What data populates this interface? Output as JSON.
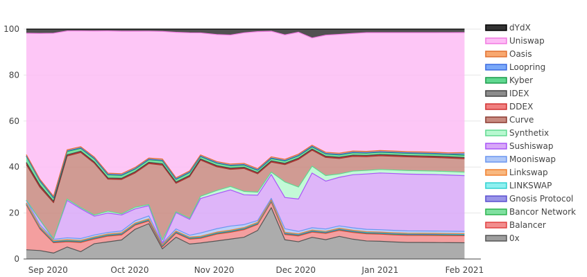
{
  "chart_data": {
    "type": "area",
    "stacked": true,
    "normalized_percent": true,
    "grid": "horizontal",
    "legend_position": "right",
    "ylim": [
      0,
      100
    ],
    "yticks": [
      0,
      20,
      40,
      60,
      80,
      100
    ],
    "xlim": [
      "2020-08-23",
      "2021-02-07"
    ],
    "xticks": [
      {
        "date": "2020-09-01",
        "label": "Sep 2020"
      },
      {
        "date": "2020-10-01",
        "label": "Oct 2020"
      },
      {
        "date": "2020-11-01",
        "label": "Nov 2020"
      },
      {
        "date": "2020-12-01",
        "label": "Dec 2020"
      },
      {
        "date": "2021-01-01",
        "label": "Jan 2021"
      },
      {
        "date": "2021-02-01",
        "label": "Feb 2021"
      }
    ],
    "x": [
      "2020-08-24",
      "2020-08-29",
      "2020-09-03",
      "2020-09-08",
      "2020-09-13",
      "2020-09-18",
      "2020-09-23",
      "2020-09-28",
      "2020-10-03",
      "2020-10-08",
      "2020-10-13",
      "2020-10-18",
      "2020-10-23",
      "2020-10-27",
      "2020-11-02",
      "2020-11-07",
      "2020-11-12",
      "2020-11-17",
      "2020-11-22",
      "2020-11-27",
      "2020-12-02",
      "2020-12-07",
      "2020-12-12",
      "2020-12-17",
      "2020-12-22",
      "2020-12-27",
      "2021-01-01",
      "2021-01-06",
      "2021-01-11",
      "2021-01-16",
      "2021-01-21",
      "2021-01-26",
      "2021-02-01"
    ],
    "series": [
      {
        "name": "0x",
        "color": "#9e9e9e",
        "line": "#555555",
        "values": [
          4,
          3.5,
          2.6,
          5.2,
          3.2,
          6.5,
          7.5,
          8.3,
          13,
          15.5,
          4,
          9.5,
          6.5,
          7.2,
          8,
          8.7,
          9.5,
          12.4,
          21.5,
          8,
          7.2,
          9.5,
          8.3,
          9.5,
          8.2,
          7.6,
          7.5,
          7.2,
          7,
          7,
          7,
          7,
          7
        ]
      },
      {
        "name": "Balancer",
        "color": "#f28e8e",
        "line": "#e04040",
        "values": [
          19.5,
          9,
          4.5,
          2.3,
          4,
          2,
          2.5,
          2.2,
          1.8,
          1.2,
          0.8,
          1.8,
          2.1,
          2.1,
          3,
          3,
          3.3,
          2.6,
          2.4,
          2.2,
          2.4,
          2.3,
          2.7,
          2.5,
          2.8,
          3,
          3,
          3,
          3,
          3,
          3,
          3,
          3
        ]
      },
      {
        "name": "Bancor Network",
        "color": "#80e0a0",
        "line": "#2cb34d",
        "values": [
          0.3,
          0.3,
          0.3,
          0.3,
          0.3,
          0.3,
          0.3,
          0.3,
          0.3,
          0.3,
          0.3,
          0.3,
          0.3,
          0.3,
          0.3,
          0.3,
          0.3,
          0.3,
          0.3,
          0.3,
          0.3,
          0.3,
          0.3,
          0.3,
          0.3,
          0.3,
          0.3,
          0.3,
          0.3,
          0.3,
          0.3,
          0.3,
          0.3
        ]
      },
      {
        "name": "Gnosis Protocol",
        "color": "#9a95e8",
        "line": "#5a4fcf",
        "values": [
          0.2,
          0.2,
          0.2,
          0.2,
          0.2,
          0.2,
          0.2,
          0.2,
          0.2,
          0.2,
          0.2,
          0.2,
          0.2,
          0.2,
          0.2,
          0.2,
          0.2,
          0.2,
          0.2,
          0.2,
          0.2,
          0.2,
          0.2,
          0.2,
          0.2,
          0.2,
          0.2,
          0.2,
          0.2,
          0.2,
          0.2,
          0.2,
          0.2
        ]
      },
      {
        "name": "LINKSWAP",
        "color": "#8ef0f0",
        "line": "#30d0d0",
        "values": [
          0.2,
          0.2,
          0.2,
          0.2,
          0.2,
          0.2,
          0.2,
          0.2,
          0.2,
          0.2,
          0.2,
          0.2,
          0.2,
          0.2,
          0.2,
          0.2,
          0.2,
          0.2,
          0.2,
          0.2,
          0.2,
          0.2,
          0.2,
          0.2,
          0.2,
          0.2,
          0.2,
          0.2,
          0.2,
          0.2,
          0.2,
          0.2,
          0.2
        ]
      },
      {
        "name": "Linkswap",
        "color": "#f8b880",
        "line": "#f08030",
        "values": [
          0.2,
          0.2,
          0.2,
          0.2,
          0.2,
          0.2,
          0.2,
          0.2,
          0.2,
          0.2,
          0.2,
          0.2,
          0.2,
          0.2,
          0.2,
          0.2,
          0.2,
          0.2,
          0.2,
          0.2,
          0.2,
          0.2,
          0.2,
          0.2,
          0.2,
          0.2,
          0.2,
          0.2,
          0.2,
          0.2,
          0.2,
          0.2,
          0.2
        ]
      },
      {
        "name": "Mooniswap",
        "color": "#b0c8f8",
        "line": "#6a96f0",
        "values": [
          1,
          0.8,
          0.6,
          0.8,
          0.8,
          0.8,
          0.7,
          0.8,
          1,
          1.3,
          0.5,
          0.9,
          0.8,
          1.5,
          1.5,
          1.8,
          1.3,
          0.8,
          0.6,
          1.5,
          1,
          1,
          1,
          1,
          1,
          1,
          1,
          1,
          1,
          1,
          1,
          1,
          1
        ]
      },
      {
        "name": "Sushiswap",
        "color": "#d8a8f8",
        "line": "#a855f7",
        "values": [
          0.1,
          2,
          0.1,
          16.3,
          13,
          8,
          8.5,
          7,
          5.2,
          4.5,
          0.1,
          7.1,
          6.9,
          15.5,
          15.5,
          15.8,
          13,
          11,
          10,
          13,
          13.5,
          24,
          20.6,
          20.4,
          22,
          23.3,
          24,
          24,
          24,
          24,
          24,
          24,
          24
        ]
      },
      {
        "name": "Synthetix",
        "color": "#b8f8d0",
        "line": "#60d890",
        "values": [
          0.1,
          0.1,
          0.1,
          0.6,
          0.5,
          0.5,
          0.8,
          0.5,
          0.7,
          0.5,
          1.2,
          0.4,
          0.5,
          1,
          1.4,
          1.5,
          1.5,
          1.3,
          1,
          6.5,
          5,
          3,
          2.4,
          1.4,
          1.5,
          1.5,
          1.5,
          1.5,
          1.5,
          1.5,
          1.5,
          1.5,
          1.5
        ]
      },
      {
        "name": "Curve",
        "color": "#c88a80",
        "line": "#8b3a30",
        "values": [
          15.4,
          13.5,
          15.8,
          18.7,
          24,
          22,
          14,
          15,
          15,
          18,
          29.5,
          12.4,
          18,
          16.3,
          10.5,
          7.5,
          10,
          8,
          4.2,
          7.2,
          11.5,
          7,
          7.8,
          6.5,
          6.1,
          5.8,
          5.8,
          5.8,
          5.8,
          5.8,
          5.8,
          5.8,
          5.8
        ]
      },
      {
        "name": "DDEX",
        "color": "#f08080",
        "line": "#d03030",
        "values": [
          0.6,
          0.5,
          0.3,
          0.2,
          0.2,
          0.2,
          0.2,
          0.2,
          0.2,
          0.2,
          0.2,
          0.2,
          0.2,
          0.2,
          0.2,
          0.2,
          0.2,
          0.2,
          0.2,
          0.2,
          0.2,
          0.2,
          0.2,
          0.2,
          0.2,
          0.2,
          0.2,
          0.2,
          0.2,
          0.2,
          0.2,
          0.2,
          0.2
        ]
      },
      {
        "name": "IDEX",
        "color": "#8c8c8c",
        "line": "#444444",
        "values": [
          0.3,
          0.3,
          0.3,
          0.3,
          0.3,
          0.3,
          0.3,
          0.3,
          0.3,
          0.3,
          0.3,
          0.3,
          0.3,
          0.3,
          0.3,
          0.3,
          0.3,
          0.3,
          0.3,
          0.3,
          0.3,
          0.3,
          0.3,
          0.3,
          0.3,
          0.3,
          0.3,
          0.3,
          0.3,
          0.3,
          0.3,
          0.3,
          0.3
        ]
      },
      {
        "name": "Kyber",
        "color": "#60d890",
        "line": "#1a9a4a",
        "values": [
          2.7,
          1.8,
          1.5,
          1.5,
          1.3,
          1.4,
          1.4,
          1.3,
          1.2,
          1.2,
          1.2,
          1.2,
          1.3,
          1.1,
          1.1,
          1.1,
          1,
          1,
          1,
          1,
          1,
          1,
          1,
          1,
          1,
          1,
          1,
          1,
          1,
          1,
          1,
          1,
          1
        ]
      },
      {
        "name": "Loopring",
        "color": "#7aa8f8",
        "line": "#3a6ae0",
        "values": [
          0.2,
          0.2,
          0.2,
          0.2,
          0.2,
          0.2,
          0.2,
          0.2,
          0.2,
          0.2,
          0.2,
          0.2,
          0.2,
          0.2,
          0.2,
          0.2,
          0.2,
          0.2,
          0.2,
          0.2,
          0.2,
          0.2,
          0.2,
          0.2,
          0.2,
          0.2,
          0.2,
          0.2,
          0.2,
          0.2,
          0.2,
          0.2,
          0.6
        ]
      },
      {
        "name": "Oasis",
        "color": "#f8a870",
        "line": "#e07030",
        "values": [
          0.5,
          0.5,
          0.5,
          0.5,
          0.5,
          0.5,
          0.5,
          0.5,
          0.5,
          0.5,
          0.5,
          0.5,
          0.5,
          0.5,
          0.5,
          0.5,
          0.5,
          0.5,
          0.5,
          0.5,
          0.5,
          0.5,
          0.5,
          0.5,
          0.5,
          0.5,
          0.5,
          0.5,
          0.5,
          0.5,
          0.5,
          0.5,
          0.5
        ]
      },
      {
        "name": "Uniswap",
        "color": "#fdbcf5",
        "line": "#f07ae0",
        "values": [
          52.7,
          60.6,
          71.2,
          51.7,
          50.4,
          53.6,
          62.2,
          62.2,
          59.5,
          55.7,
          50.3,
          63.4,
          59.9,
          54.9,
          56.2,
          56.4,
          57,
          59.5,
          52.6,
          51.8,
          50.8,
          47,
          50.4,
          49.9,
          48.7,
          50,
          49.9,
          50,
          50.3,
          50.6,
          50.9,
          51.4,
          51.7
        ]
      },
      {
        "name": "dYdX",
        "color": "#333333",
        "line": "#000000",
        "values": [
          1.8,
          1.8,
          1.8,
          0.8,
          0.8,
          0.8,
          0.8,
          0.9,
          0.9,
          0.9,
          0.9,
          1.4,
          1.6,
          1.7,
          2.4,
          2.6,
          1.6,
          1.1,
          0.9,
          2.4,
          1.3,
          3.9,
          2.6,
          2.2,
          1.8,
          1.5,
          1.5,
          1.5,
          1.5,
          1.5,
          1.5,
          1.5,
          1.5
        ]
      }
    ]
  }
}
